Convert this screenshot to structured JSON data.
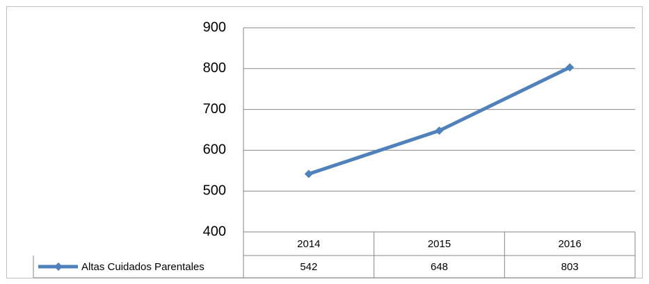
{
  "chart_data": {
    "type": "line",
    "categories": [
      "2014",
      "2015",
      "2016"
    ],
    "series": [
      {
        "name": "Altas Cuidados Parentales",
        "color": "#4f81bd",
        "values": [
          542,
          648,
          803
        ]
      }
    ],
    "ylim": [
      400,
      900
    ],
    "yticks": [
      400,
      500,
      600,
      700,
      800,
      900
    ],
    "grid": true,
    "data_table": true
  }
}
